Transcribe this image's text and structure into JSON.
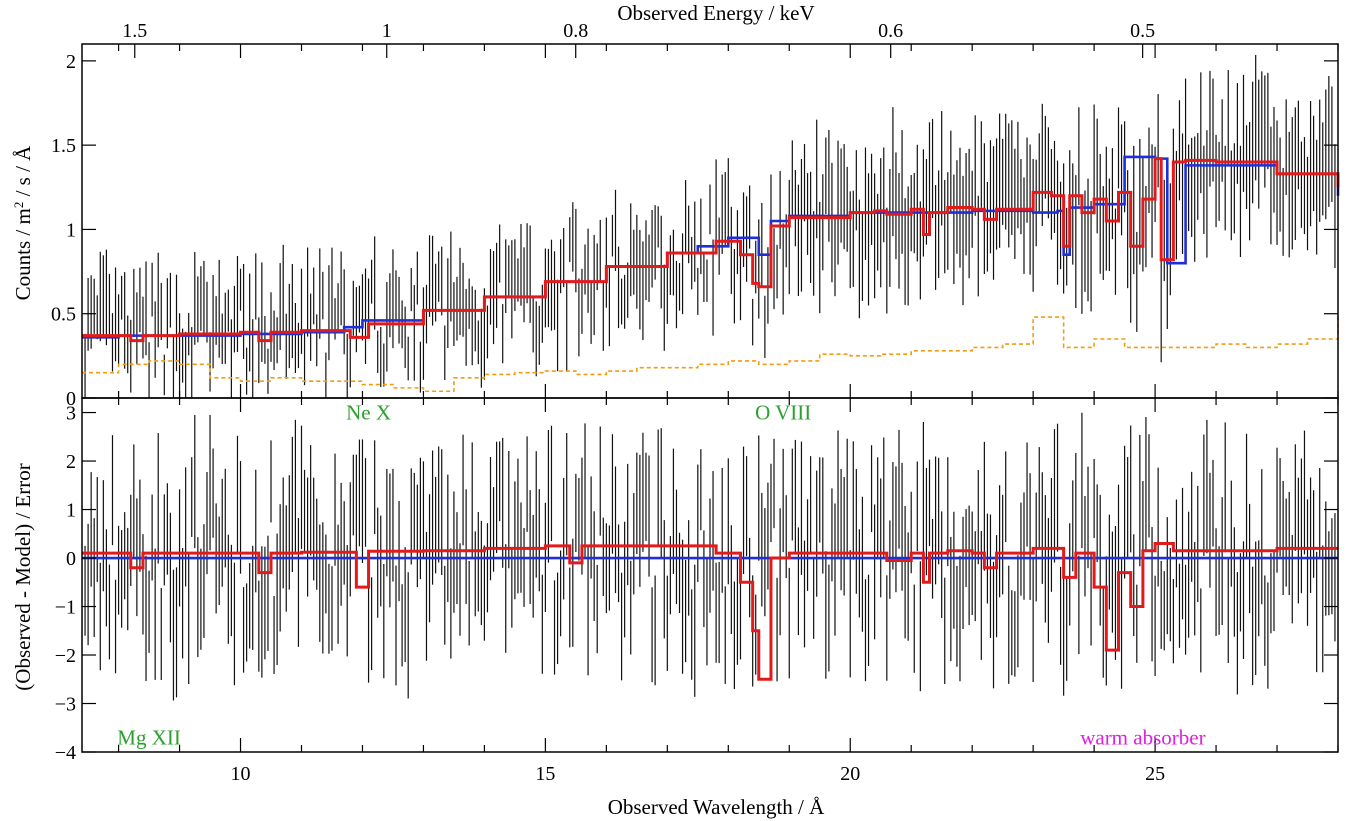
{
  "chart_data": {
    "type": "line",
    "top_axis": {
      "label": "Observed Energy / keV",
      "ticks": [
        1.5,
        1,
        0.8,
        0.6,
        0.5
      ],
      "tick_labels": [
        "1.5",
        "1",
        "0.8",
        "0.6",
        "0.5"
      ]
    },
    "x_axis": {
      "label": "Observed Wavelength / Å",
      "range": [
        7.4,
        28
      ],
      "ticks": [
        10,
        15,
        20,
        25
      ],
      "tick_labels": [
        "10",
        "15",
        "20",
        "25"
      ]
    },
    "panels": [
      {
        "name": "spectrum",
        "ylabel_parts": [
          "Counts / m",
          "2",
          " / s / Å"
        ],
        "ylim": [
          0,
          2.1
        ],
        "yticks": [
          0,
          0.5,
          1,
          1.5,
          2
        ],
        "ytick_labels": [
          "0",
          "0.5",
          "1",
          "1.5",
          "2"
        ],
        "series": [
          {
            "role": "background",
            "color": "#f39c12",
            "style": "dashed-step",
            "x": [
              7.4,
              8,
              8.5,
              9,
              9.5,
              10,
              10.5,
              11,
              11.5,
              12,
              12.5,
              13,
              13.5,
              14,
              14.5,
              15,
              15.5,
              16,
              16.5,
              17,
              17.5,
              18,
              18.5,
              19,
              19.5,
              20,
              20.5,
              21,
              21.5,
              22,
              22.5,
              23,
              23.5,
              24,
              24.5,
              25,
              25.5,
              26,
              26.5,
              27,
              27.5,
              28
            ],
            "y": [
              0.15,
              0.2,
              0.22,
              0.2,
              0.12,
              0.1,
              0.12,
              0.1,
              0.1,
              0.08,
              0.06,
              0.04,
              0.12,
              0.14,
              0.15,
              0.16,
              0.14,
              0.16,
              0.18,
              0.18,
              0.2,
              0.22,
              0.2,
              0.22,
              0.26,
              0.25,
              0.26,
              0.28,
              0.28,
              0.3,
              0.32,
              0.48,
              0.3,
              0.35,
              0.3,
              0.3,
              0.3,
              0.32,
              0.3,
              0.32,
              0.35,
              0.5
            ]
          },
          {
            "role": "model-blue",
            "color": "#1f2fd6",
            "style": "step",
            "x": [
              7.4,
              8,
              9,
              10,
              11,
              11.7,
              12,
              13,
              14,
              15,
              16,
              17,
              17.5,
              18,
              18.3,
              18.5,
              18.7,
              19,
              20,
              21,
              22,
              23,
              23.4,
              23.5,
              23.6,
              24,
              24.5,
              25,
              25.2,
              25.5,
              26,
              27,
              28
            ],
            "y": [
              0.36,
              0.37,
              0.37,
              0.38,
              0.39,
              0.42,
              0.46,
              0.52,
              0.6,
              0.69,
              0.78,
              0.86,
              0.9,
              0.95,
              0.95,
              0.85,
              1.05,
              1.08,
              1.1,
              1.1,
              1.11,
              1.1,
              1.11,
              0.85,
              1.13,
              1.15,
              1.43,
              1.42,
              0.8,
              1.38,
              1.38,
              1.33,
              1.2
            ]
          },
          {
            "role": "model-red",
            "color": "#e31a1c",
            "style": "step",
            "x": [
              7.4,
              8,
              8.2,
              8.4,
              9,
              10,
              10.3,
              10.5,
              11,
              11.8,
              11.9,
              12.1,
              13,
              14,
              15,
              16,
              17,
              17.8,
              18.2,
              18.4,
              18.5,
              18.7,
              19,
              20,
              20.4,
              20.6,
              21,
              21.2,
              21.3,
              21.6,
              22,
              22.2,
              22.4,
              23,
              23.3,
              23.5,
              23.6,
              23.8,
              24,
              24.2,
              24.4,
              24.6,
              24.8,
              25,
              25.1,
              25.3,
              25.5,
              26,
              27,
              28
            ],
            "y": [
              0.37,
              0.37,
              0.34,
              0.37,
              0.38,
              0.39,
              0.34,
              0.39,
              0.4,
              0.36,
              0.36,
              0.44,
              0.52,
              0.6,
              0.69,
              0.78,
              0.86,
              0.93,
              0.85,
              0.68,
              0.66,
              1.02,
              1.07,
              1.1,
              1.11,
              1.09,
              1.12,
              0.97,
              1.1,
              1.13,
              1.12,
              1.06,
              1.12,
              1.22,
              1.2,
              0.9,
              1.2,
              1.1,
              1.18,
              1.05,
              1.22,
              0.9,
              1.18,
              1.42,
              0.82,
              1.4,
              1.41,
              1.4,
              1.33,
              1.25
            ]
          }
        ]
      },
      {
        "name": "residuals",
        "ylabel": "(Observed - Model) / Error",
        "ylim": [
          -4,
          3.3
        ],
        "yticks": [
          -4,
          -3,
          -2,
          -1,
          0,
          1,
          2,
          3
        ],
        "ytick_labels": [
          "−4",
          "−3",
          "−2",
          "−1",
          "0",
          "1",
          "2",
          "3"
        ],
        "series": [
          {
            "role": "model-blue",
            "color": "#1f2fd6",
            "style": "line",
            "x": [
              7.4,
              28
            ],
            "y": [
              0,
              0
            ]
          },
          {
            "role": "model-red",
            "color": "#e31a1c",
            "style": "step",
            "x": [
              7.4,
              8,
              8.2,
              8.4,
              9,
              10,
              10.3,
              10.5,
              11,
              11.7,
              11.9,
              12.1,
              13,
              14,
              15,
              15.4,
              15.6,
              16,
              17,
              17.8,
              18.2,
              18.4,
              18.5,
              18.7,
              19,
              20,
              20.4,
              20.6,
              21,
              21.2,
              21.3,
              21.6,
              22,
              22.2,
              22.4,
              23,
              23.3,
              23.5,
              23.7,
              24,
              24.2,
              24.4,
              24.6,
              24.8,
              25,
              25.3,
              26,
              27,
              28
            ],
            "y": [
              0.1,
              0.1,
              -0.2,
              0.1,
              0.1,
              0.1,
              -0.3,
              0.1,
              0.12,
              0.12,
              -0.6,
              0.14,
              0.15,
              0.2,
              0.25,
              -0.1,
              0.25,
              0.25,
              0.25,
              0.1,
              -0.5,
              -1.5,
              -2.5,
              0.0,
              0.1,
              0.1,
              0.1,
              -0.05,
              0.1,
              -0.5,
              0.1,
              0.15,
              0.1,
              -0.2,
              0.1,
              0.2,
              0.2,
              -0.4,
              0.1,
              -0.6,
              -1.9,
              -0.3,
              -1.0,
              0.15,
              0.3,
              0.15,
              0.15,
              0.2,
              0.2
            ]
          }
        ]
      }
    ],
    "annotations": [
      {
        "text": "Ne X",
        "color": "#2ca02c",
        "x": 12.1,
        "y": 3.0,
        "panel": 1
      },
      {
        "text": "O VIII",
        "color": "#2ca02c",
        "x": 18.9,
        "y": 3.0,
        "panel": 1
      },
      {
        "text": "Mg XII",
        "color": "#2ca02c",
        "x": 8.5,
        "y": -3.7,
        "panel": 1
      },
      {
        "text": "warm absorber",
        "color": "#e020e0",
        "x": 24.8,
        "y": -3.7,
        "panel": 1
      }
    ],
    "grid": false,
    "legend": "none"
  }
}
